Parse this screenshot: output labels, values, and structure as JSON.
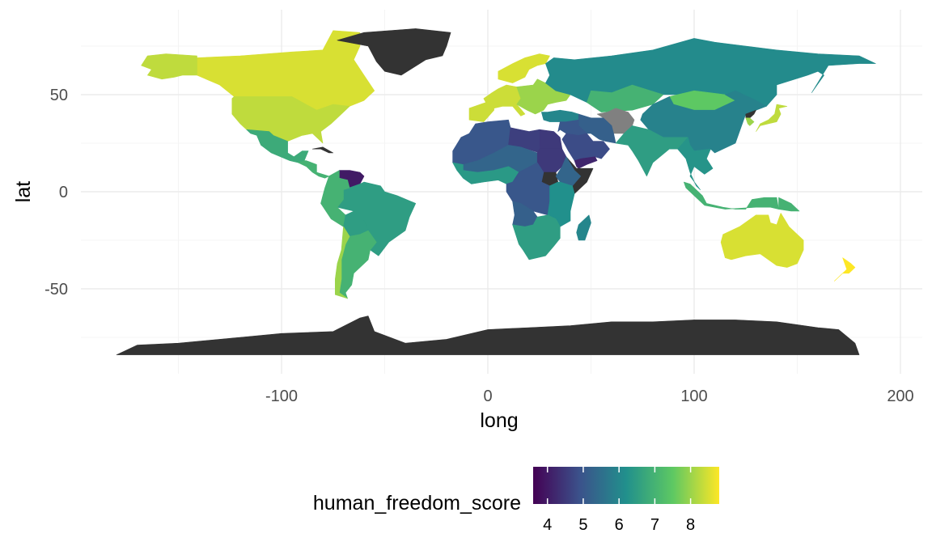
{
  "chart_data": {
    "type": "choropleth-map",
    "xlabel": "long",
    "ylabel": "lat",
    "xlim": [
      -195,
      210
    ],
    "ylim": [
      -90,
      88
    ],
    "x_ticks": [
      -100,
      0,
      100,
      200
    ],
    "x_tick_labels": [
      "-100",
      "0",
      "100",
      "200"
    ],
    "y_ticks": [
      -50,
      0,
      50
    ],
    "y_tick_labels": [
      "-50",
      "0",
      "50"
    ],
    "grid": true,
    "legend": {
      "title": "human_freedom_score",
      "placement": "bottom",
      "range": [
        3.6,
        8.8
      ],
      "ticks": [
        4,
        5,
        6,
        7,
        8
      ],
      "tick_labels": [
        "4",
        "5",
        "6",
        "7",
        "8"
      ],
      "palette": "viridis",
      "stops": [
        "#440154",
        "#3b528b",
        "#21908c",
        "#5dc863",
        "#fde725"
      ]
    },
    "na_color": "#808080",
    "no_data_color": "#333333",
    "regions": [
      {
        "name": "Canada",
        "score": 8.5
      },
      {
        "name": "United States",
        "score": 8.3
      },
      {
        "name": "Alaska",
        "score": 8.3
      },
      {
        "name": "Mexico",
        "score": 6.8
      },
      {
        "name": "Central America",
        "score": 7.0
      },
      {
        "name": "Cuba",
        "score": null
      },
      {
        "name": "Venezuela",
        "score": 4.0
      },
      {
        "name": "Brazil",
        "score": 6.5
      },
      {
        "name": "Colombia/Ecuador/Peru",
        "score": 7.0
      },
      {
        "name": "Bolivia",
        "score": 6.5
      },
      {
        "name": "Argentina",
        "score": 7.0
      },
      {
        "name": "Chile",
        "score": 8.0
      },
      {
        "name": "Greenland",
        "score": null
      },
      {
        "name": "Scandinavia",
        "score": 8.5
      },
      {
        "name": "Western Europe",
        "score": 8.4
      },
      {
        "name": "Eastern Europe",
        "score": 8.0
      },
      {
        "name": "Turkey",
        "score": 6.0
      },
      {
        "name": "Russia",
        "score": 6.1
      },
      {
        "name": "Kazakhstan",
        "score": 7.0
      },
      {
        "name": "Mongolia",
        "score": 7.5
      },
      {
        "name": "China",
        "score": 5.9
      },
      {
        "name": "North Korea",
        "score": null
      },
      {
        "name": "South Korea",
        "score": 8.0
      },
      {
        "name": "Japan",
        "score": 8.3
      },
      {
        "name": "Afghanistan/Turkmenistan",
        "score": null
      },
      {
        "name": "Iran",
        "score": 5.2
      },
      {
        "name": "Middle East",
        "score": 5.0
      },
      {
        "name": "Saudi Arabia",
        "score": 4.8
      },
      {
        "name": "Yemen",
        "score": 4.2
      },
      {
        "name": "India",
        "score": 6.5
      },
      {
        "name": "Southeast Asia",
        "score": 6.3
      },
      {
        "name": "Indonesia",
        "score": 7.0
      },
      {
        "name": "Philippines/PNG",
        "score": 7.0
      },
      {
        "name": "North Africa",
        "score": 5.0
      },
      {
        "name": "Egypt",
        "score": 4.5
      },
      {
        "name": "Libya",
        "score": 4.6
      },
      {
        "name": "Sahel",
        "score": 5.3
      },
      {
        "name": "West Africa",
        "score": 6.4
      },
      {
        "name": "Sudan",
        "score": 4.5
      },
      {
        "name": "South Sudan",
        "score": null
      },
      {
        "name": "Somalia/Eritrea",
        "score": null
      },
      {
        "name": "Ethiopia",
        "score": 5.3
      },
      {
        "name": "Central Africa",
        "score": 5.0
      },
      {
        "name": "East Africa",
        "score": 6.2
      },
      {
        "name": "Angola",
        "score": 5.2
      },
      {
        "name": "Southern Africa",
        "score": 6.5
      },
      {
        "name": "Madagascar",
        "score": 6.0
      },
      {
        "name": "Australia",
        "score": 8.5
      },
      {
        "name": "New Zealand",
        "score": 8.8
      },
      {
        "name": "Antarctica",
        "score": null
      }
    ]
  }
}
